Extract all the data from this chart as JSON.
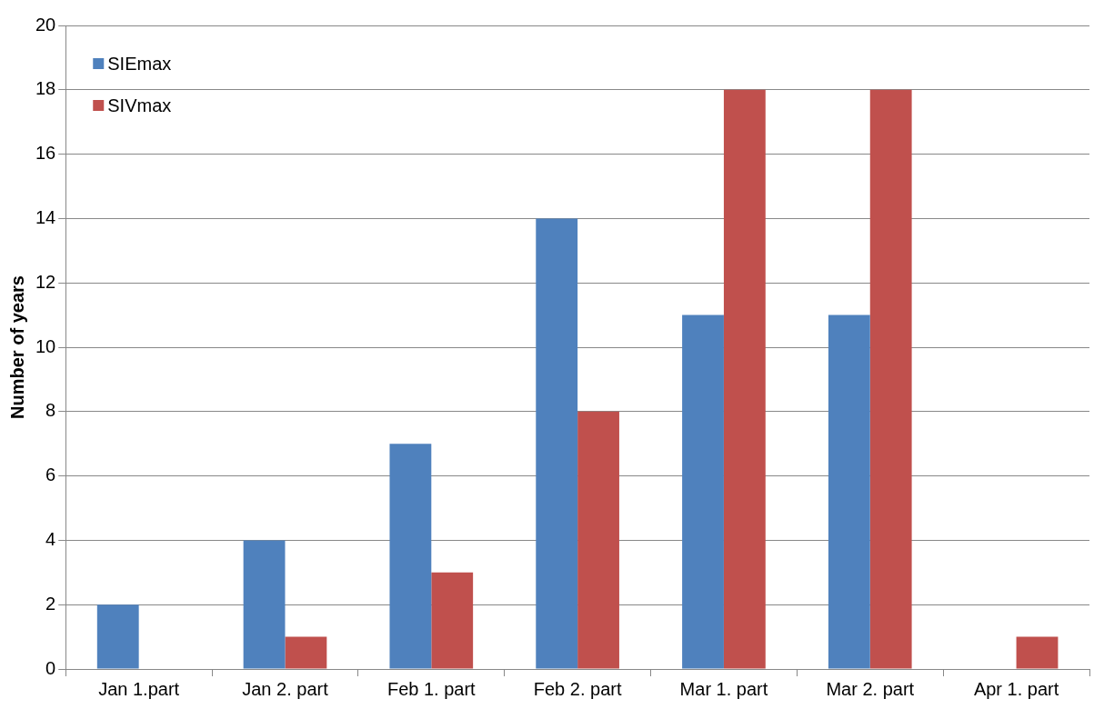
{
  "chart_data": {
    "type": "bar",
    "ylabel": "Number of years",
    "categories": [
      "Jan 1.part",
      "Jan 2. part",
      "Feb 1. part",
      "Feb 2. part",
      "Mar 1. part",
      "Mar 2. part",
      "Apr 1. part"
    ],
    "series": [
      {
        "name": "SIEmax",
        "color": "#4f81bd",
        "values": [
          2,
          4,
          7,
          14,
          11,
          11,
          0
        ]
      },
      {
        "name": "SIVmax",
        "color": "#c0504d",
        "values": [
          0,
          1,
          3,
          8,
          18,
          18,
          1
        ]
      }
    ],
    "ylim": [
      0,
      20
    ],
    "yticks": [
      0,
      2,
      4,
      6,
      8,
      10,
      12,
      14,
      16,
      18,
      20
    ],
    "grid": "y",
    "legend": "top left"
  }
}
